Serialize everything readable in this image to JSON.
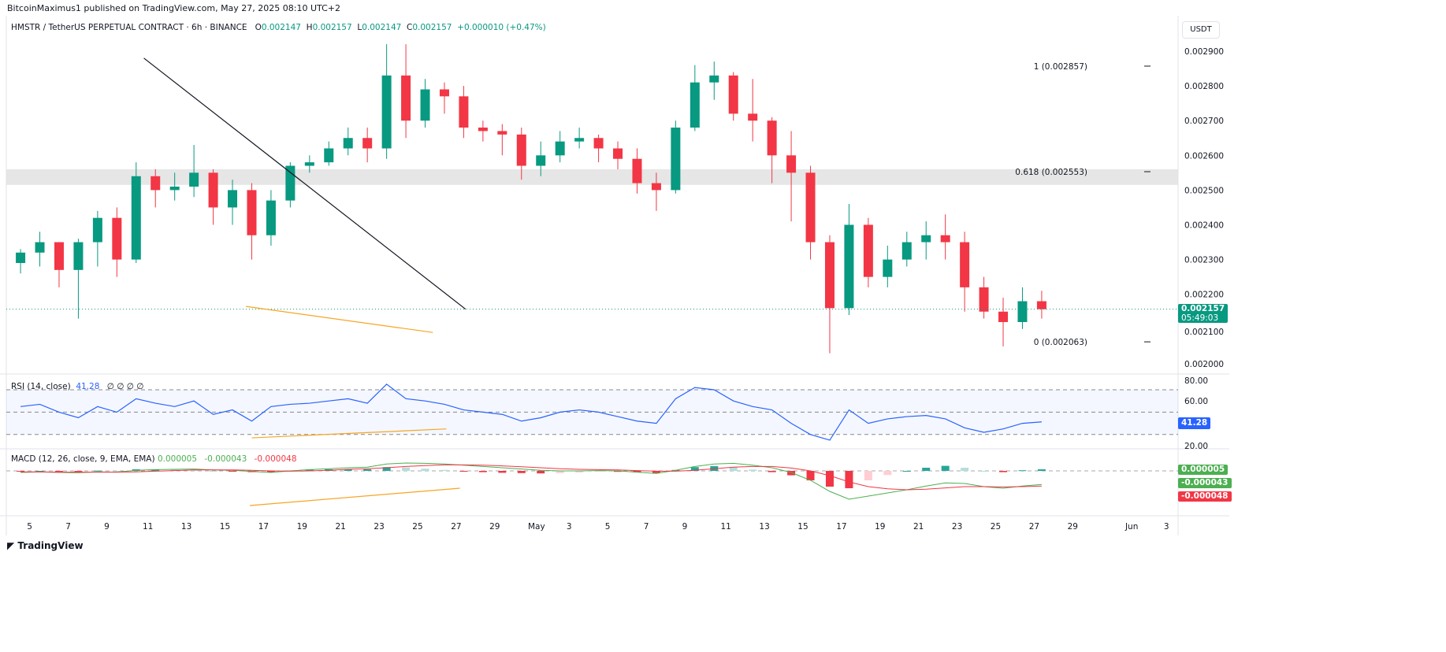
{
  "header": {
    "published": "BitcoinMaximus1 published on TradingView.com, May 27, 2025 08:10 UTC+2",
    "symbol": "HMSTR / TetherUS PERPETUAL CONTRACT · 6h · BINANCE",
    "o_label": "O",
    "o": "0.002147",
    "h_label": "H",
    "h": "0.002157",
    "l_label": "L",
    "l": "0.002147",
    "c_label": "C",
    "c": "0.002157",
    "change": "+0.000010 (+0.47%)",
    "unit": "USDT"
  },
  "footer": {
    "brand": "TradingView"
  },
  "colors": {
    "up": "#089981",
    "down": "#f23645",
    "rsi": "#2962ff",
    "macd": "#4caf50",
    "signal": "#f23645",
    "trend": "#131722",
    "support": "#f5a623",
    "zone": "#e0e0e0"
  },
  "chart_data": [
    {
      "type": "candlestick",
      "title": "HMSTR / TetherUS PERPETUAL CONTRACT · 6h · BINANCE",
      "ylim": [
        0.00197,
        0.00293
      ],
      "y_ticks": [
        "0.002000",
        "0.002100",
        "0.002200",
        "0.002300",
        "0.002400",
        "0.002500",
        "0.002600",
        "0.002700",
        "0.002800",
        "0.002900"
      ],
      "x_ticks": [
        {
          "day": 5,
          "label": "5"
        },
        {
          "day": 7,
          "label": "7"
        },
        {
          "day": 9,
          "label": "9"
        },
        {
          "day": 11,
          "label": "11"
        },
        {
          "day": 13,
          "label": "13"
        },
        {
          "day": 15,
          "label": "15"
        },
        {
          "day": 17,
          "label": "17"
        },
        {
          "day": 19,
          "label": "19"
        },
        {
          "day": 21,
          "label": "21"
        },
        {
          "day": 23,
          "label": "23"
        },
        {
          "day": 25,
          "label": "25"
        },
        {
          "day": 27,
          "label": "27"
        },
        {
          "day": 29,
          "label": "29"
        },
        {
          "day": 31,
          "label": "May"
        },
        {
          "day": 33,
          "label": "3"
        },
        {
          "day": 35,
          "label": "5"
        },
        {
          "day": 37,
          "label": "7"
        },
        {
          "day": 39,
          "label": "9"
        },
        {
          "day": 41,
          "label": "11"
        },
        {
          "day": 43,
          "label": "13"
        },
        {
          "day": 45,
          "label": "15"
        },
        {
          "day": 47,
          "label": "17"
        },
        {
          "day": 49,
          "label": "19"
        },
        {
          "day": 51,
          "label": "21"
        },
        {
          "day": 53,
          "label": "23"
        },
        {
          "day": 55,
          "label": "25"
        },
        {
          "day": 57,
          "label": "27"
        },
        {
          "day": 59,
          "label": "29"
        },
        {
          "day": 62,
          "label": "Jun"
        },
        {
          "day": 64,
          "label": "3"
        }
      ],
      "first_day": 4,
      "ohlc": [
        [
          0.00229,
          0.00233,
          0.00226,
          0.00232
        ],
        [
          0.00232,
          0.00238,
          0.00228,
          0.00235
        ],
        [
          0.00235,
          0.00235,
          0.00222,
          0.00227
        ],
        [
          0.00227,
          0.00236,
          0.00213,
          0.00235
        ],
        [
          0.00235,
          0.00244,
          0.00228,
          0.00242
        ],
        [
          0.00242,
          0.00245,
          0.00225,
          0.0023
        ],
        [
          0.0023,
          0.00258,
          0.00229,
          0.00254
        ],
        [
          0.00254,
          0.00256,
          0.00245,
          0.0025
        ],
        [
          0.0025,
          0.00255,
          0.00247,
          0.00251
        ],
        [
          0.00251,
          0.00263,
          0.00248,
          0.00255
        ],
        [
          0.00255,
          0.00256,
          0.0024,
          0.00245
        ],
        [
          0.00245,
          0.00253,
          0.0024,
          0.0025
        ],
        [
          0.0025,
          0.00252,
          0.0023,
          0.00237
        ],
        [
          0.00237,
          0.0025,
          0.00234,
          0.00247
        ],
        [
          0.00247,
          0.00258,
          0.00245,
          0.00257
        ],
        [
          0.00257,
          0.0026,
          0.00255,
          0.00258
        ],
        [
          0.00258,
          0.00264,
          0.00257,
          0.00262
        ],
        [
          0.00262,
          0.00268,
          0.0026,
          0.00265
        ],
        [
          0.00265,
          0.00268,
          0.00258,
          0.00262
        ],
        [
          0.00262,
          0.00292,
          0.00259,
          0.00283
        ],
        [
          0.00283,
          0.00292,
          0.00265,
          0.0027
        ],
        [
          0.0027,
          0.00282,
          0.00268,
          0.00279
        ],
        [
          0.00279,
          0.00281,
          0.00272,
          0.00277
        ],
        [
          0.00277,
          0.0028,
          0.00265,
          0.00268
        ],
        [
          0.00268,
          0.0027,
          0.00264,
          0.00267
        ],
        [
          0.00267,
          0.00269,
          0.0026,
          0.00266
        ],
        [
          0.00266,
          0.00268,
          0.00253,
          0.00257
        ],
        [
          0.00257,
          0.00264,
          0.00254,
          0.0026
        ],
        [
          0.0026,
          0.00267,
          0.00258,
          0.00264
        ],
        [
          0.00264,
          0.00268,
          0.00262,
          0.00265
        ],
        [
          0.00265,
          0.00266,
          0.00258,
          0.00262
        ],
        [
          0.00262,
          0.00264,
          0.00256,
          0.00259
        ],
        [
          0.00259,
          0.00262,
          0.00249,
          0.00252
        ],
        [
          0.00252,
          0.00255,
          0.00244,
          0.0025
        ],
        [
          0.0025,
          0.0027,
          0.00249,
          0.00268
        ],
        [
          0.00268,
          0.00286,
          0.00267,
          0.00281
        ],
        [
          0.00281,
          0.00287,
          0.00276,
          0.00283
        ],
        [
          0.00283,
          0.00284,
          0.0027,
          0.00272
        ],
        [
          0.00272,
          0.00282,
          0.00264,
          0.0027
        ],
        [
          0.0027,
          0.00271,
          0.00252,
          0.0026
        ],
        [
          0.0026,
          0.00267,
          0.00241,
          0.00255
        ],
        [
          0.00255,
          0.00257,
          0.0023,
          0.00235
        ],
        [
          0.00235,
          0.00237,
          0.00203,
          0.00216
        ],
        [
          0.00216,
          0.00246,
          0.00214,
          0.0024
        ],
        [
          0.0024,
          0.00242,
          0.00222,
          0.00225
        ],
        [
          0.00225,
          0.00234,
          0.00222,
          0.0023
        ],
        [
          0.0023,
          0.00238,
          0.00228,
          0.00235
        ],
        [
          0.00235,
          0.00241,
          0.0023,
          0.00237
        ],
        [
          0.00237,
          0.00243,
          0.0023,
          0.00235
        ],
        [
          0.00235,
          0.00238,
          0.00215,
          0.00222
        ],
        [
          0.00222,
          0.00225,
          0.00213,
          0.00215
        ],
        [
          0.00215,
          0.00219,
          0.00205,
          0.00212
        ],
        [
          0.00212,
          0.00222,
          0.0021,
          0.00218
        ],
        [
          0.00218,
          0.00221,
          0.00213,
          0.002157
        ]
      ],
      "last_price": "0.002157",
      "countdown": "05:49:03",
      "fib_levels": [
        {
          "label": "1 (0.002857)",
          "value": 0.002857
        },
        {
          "label": "0.618 (0.002553)",
          "value": 0.002553
        },
        {
          "label": "0 (0.002063)",
          "value": 0.002063
        }
      ],
      "zone": [
        0.002515,
        0.00256
      ],
      "trendline": [
        [
          10.9,
          0.00288
        ],
        [
          27.6,
          0.002157
        ]
      ],
      "support_line": [
        [
          16.2,
          0.002165
        ],
        [
          25.9,
          0.00209
        ]
      ]
    },
    {
      "type": "line",
      "title": "RSI (14, close)",
      "value": "41.28",
      "extra": "∅ ∅ ∅ ∅",
      "ylim": [
        20,
        80
      ],
      "y_ticks": [
        "80.00",
        "60.00",
        "20.00"
      ],
      "bands": [
        70,
        50,
        30
      ],
      "values": [
        55,
        57,
        50,
        45,
        55,
        50,
        62,
        58,
        55,
        60,
        48,
        52,
        42,
        55,
        57,
        58,
        60,
        62,
        58,
        75,
        62,
        60,
        57,
        52,
        50,
        48,
        42,
        45,
        50,
        52,
        50,
        46,
        42,
        40,
        62,
        72,
        70,
        60,
        55,
        52,
        40,
        30,
        25,
        52,
        40,
        44,
        46,
        47,
        44,
        36,
        32,
        35,
        40,
        41.28
      ],
      "support_line": [
        [
          16.5,
          27
        ],
        [
          26.6,
          35
        ]
      ]
    },
    {
      "type": "macd",
      "title": "MACD (12, 26, close, 9, EMA, EMA)",
      "values_printed": {
        "histogram": "0.000005",
        "macd": "-0.000043",
        "signal": "-0.000048"
      },
      "macd": [
        -5e-06,
        -3e-06,
        -5e-06,
        -6e-06,
        -3e-06,
        -4e-06,
        2e-06,
        4e-06,
        5e-06,
        6e-06,
        3e-06,
        2e-06,
        -2e-06,
        -5e-06,
        0,
        4e-06,
        7e-06,
        1e-05,
        1.2e-05,
        2.2e-05,
        2.5e-05,
        2.4e-05,
        2.2e-05,
        1.8e-05,
        1.4e-05,
        1e-05,
        6e-06,
        2e-06,
        0,
        0,
        1e-06,
        0,
        -4e-06,
        -8e-06,
        2e-06,
        1.4e-05,
        2.2e-05,
        2.4e-05,
        1.8e-05,
        1e-05,
        -5e-06,
        -3e-05,
        -6.5e-05,
        -9e-05,
        -8e-05,
        -7e-05,
        -6e-05,
        -4.8e-05,
        -3.8e-05,
        -4e-05,
        -5e-05,
        -5.5e-05,
        -4.8e-05,
        -4.3e-05
      ],
      "signal": [
        -3e-06,
        -3e-06,
        -4e-06,
        -4e-06,
        -4e-06,
        -4e-06,
        -3e-06,
        -1e-06,
        1e-06,
        3e-06,
        3e-06,
        3e-06,
        2e-06,
        0,
        -1e-06,
        0,
        2e-06,
        5e-06,
        7e-06,
        1e-05,
        1.4e-05,
        1.7e-05,
        1.9e-05,
        1.9e-05,
        1.8e-05,
        1.6e-05,
        1.3e-05,
        1e-05,
        7e-06,
        5e-06,
        4e-06,
        3e-06,
        1e-06,
        -1e-06,
        -1e-06,
        2e-06,
        7e-06,
        1.2e-05,
        1.4e-05,
        1.4e-05,
        9e-06,
        0,
        -1.5e-05,
        -3.5e-05,
        -5e-05,
        -5.7e-05,
        -6e-05,
        -5.8e-05,
        -5.4e-05,
        -5e-05,
        -5e-05,
        -5.1e-05,
        -5e-05,
        -4.8e-05
      ],
      "support_line": [
        [
          16.4,
          -0.00011
        ],
        [
          27.3,
          -5.5e-05
        ]
      ]
    }
  ]
}
